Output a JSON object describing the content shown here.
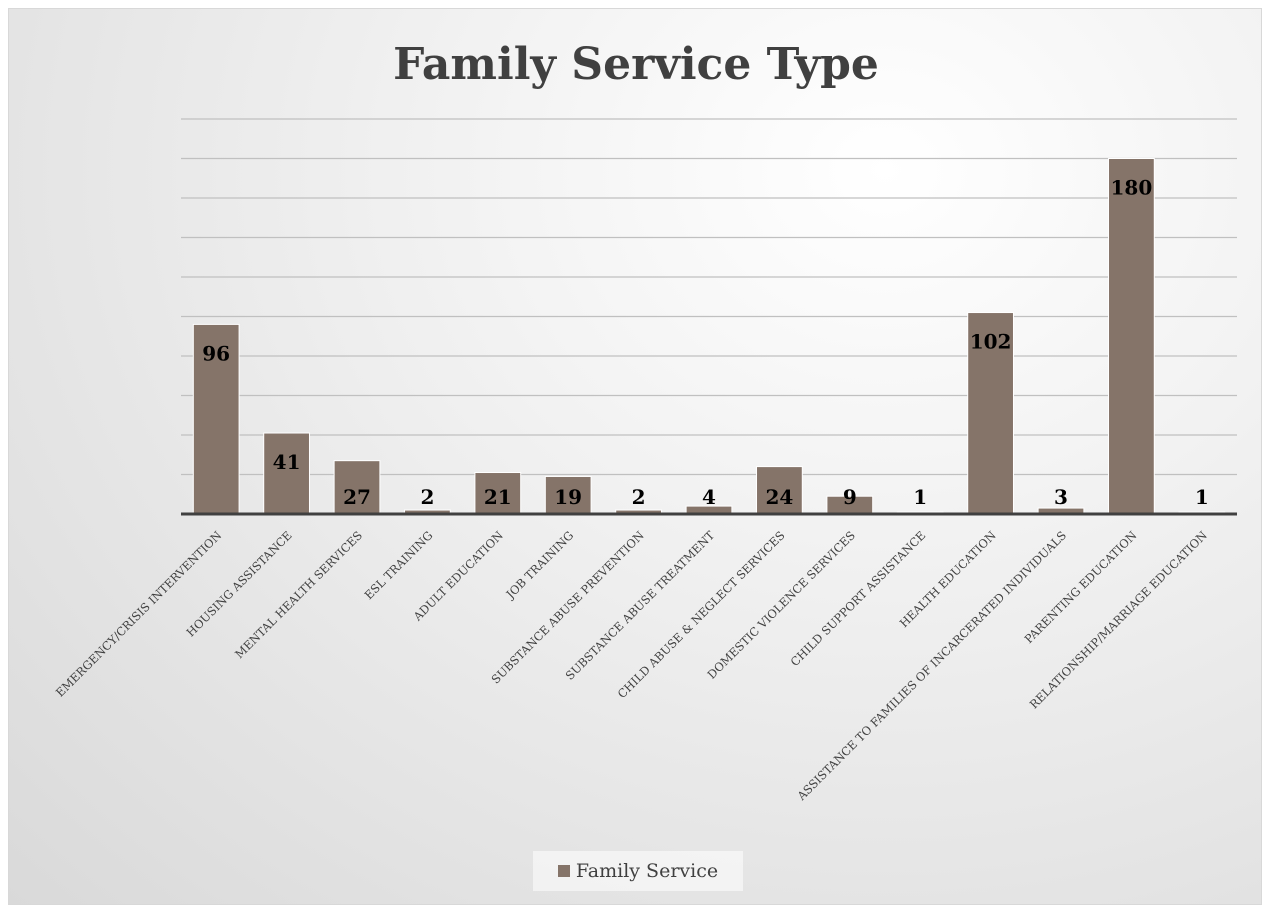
{
  "chart_data": {
    "type": "bar",
    "title": "Family Service Type",
    "xlabel": "",
    "ylabel": "",
    "categories": [
      "EMERGENCY/CRISIS INTERVENTION",
      "HOUSING ASSISTANCE",
      "MENTAL HEALTH SERVICES",
      "ESL TRAINING",
      "ADULT EDUCATION",
      "JOB TRAINING",
      "SUBSTANCE ABUSE PREVENTION",
      "SUBSTANCE ABUSE TREATMENT",
      "CHILD ABUSE & NEGLECT SERVICES",
      "DOMESTIC VIOLENCE SERVICES",
      "CHILD SUPPORT ASSISTANCE",
      "HEALTH EDUCATION",
      "ASSISTANCE TO FAMILIES OF INCARCERATED INDIVIDUALS",
      "PARENTING EDUCATION",
      "RELATIONSHIP/MARRIAGE EDUCATION"
    ],
    "series": [
      {
        "name": "Family Service",
        "values": [
          96,
          41,
          27,
          2,
          21,
          19,
          2,
          4,
          24,
          9,
          1,
          102,
          3,
          180,
          1
        ]
      }
    ],
    "ylim": [
      0,
      200
    ],
    "grid": true,
    "legend": "bottom",
    "colors": {
      "bar": "#857469",
      "axis": "#404040",
      "grid": "#c0c0c0"
    }
  }
}
